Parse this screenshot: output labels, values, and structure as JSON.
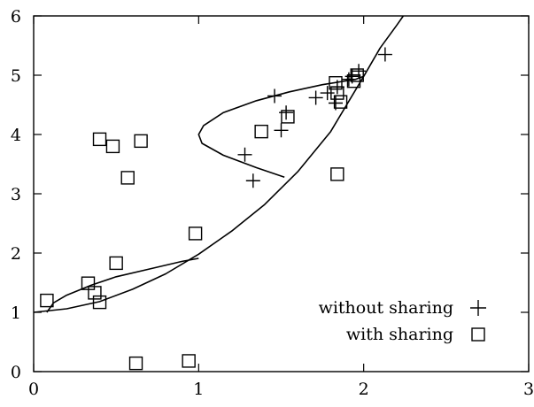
{
  "chart_data": {
    "type": "scatter",
    "xlim": [
      0,
      3
    ],
    "ylim": [
      0,
      6
    ],
    "x_ticks": [
      0,
      1,
      2,
      3
    ],
    "y_ticks": [
      0,
      1,
      2,
      3,
      4,
      5,
      6
    ],
    "grid": false,
    "legend_position": "bottom-right",
    "series": [
      {
        "name": "without sharing",
        "marker": "plus",
        "points": [
          [
            1.28,
            3.66
          ],
          [
            1.33,
            3.22
          ],
          [
            1.46,
            4.65
          ],
          [
            1.5,
            4.07
          ],
          [
            1.53,
            4.37
          ],
          [
            1.71,
            4.62
          ],
          [
            1.78,
            4.7
          ],
          [
            1.83,
            4.53
          ],
          [
            1.84,
            4.8
          ],
          [
            1.91,
            4.93
          ],
          [
            1.93,
            4.98
          ],
          [
            1.97,
            5.07
          ],
          [
            2.13,
            5.35
          ]
        ]
      },
      {
        "name": "with sharing",
        "marker": "square",
        "points": [
          [
            0.08,
            1.2
          ],
          [
            0.33,
            1.49
          ],
          [
            0.37,
            1.33
          ],
          [
            0.4,
            1.17
          ],
          [
            0.4,
            3.92
          ],
          [
            0.48,
            3.8
          ],
          [
            0.5,
            1.83
          ],
          [
            0.57,
            3.27
          ],
          [
            0.62,
            0.14
          ],
          [
            0.65,
            3.89
          ],
          [
            0.94,
            0.18
          ],
          [
            0.98,
            2.33
          ],
          [
            1.38,
            4.05
          ],
          [
            1.54,
            4.3
          ],
          [
            1.83,
            4.87
          ],
          [
            1.84,
            3.33
          ],
          [
            1.84,
            4.7
          ],
          [
            1.86,
            4.55
          ],
          [
            1.94,
            4.9
          ],
          [
            1.96,
            5.0
          ]
        ]
      }
    ],
    "curves": [
      {
        "points": [
          [
            0.0,
            1.0
          ],
          [
            0.2,
            1.06
          ],
          [
            0.4,
            1.18
          ],
          [
            0.6,
            1.39
          ],
          [
            0.8,
            1.65
          ],
          [
            1.0,
            1.98
          ],
          [
            1.2,
            2.37
          ],
          [
            1.4,
            2.82
          ],
          [
            1.6,
            3.37
          ],
          [
            1.8,
            4.05
          ],
          [
            2.0,
            4.98
          ],
          [
            2.1,
            5.46
          ],
          [
            2.2,
            5.84
          ],
          [
            2.24,
            6.0
          ]
        ]
      },
      {
        "points": [
          [
            0.08,
            1.0
          ],
          [
            0.12,
            1.16
          ],
          [
            0.2,
            1.29
          ],
          [
            0.35,
            1.46
          ],
          [
            0.5,
            1.6
          ],
          [
            0.7,
            1.73
          ],
          [
            0.9,
            1.86
          ],
          [
            1.0,
            1.91
          ]
        ]
      },
      {
        "points": [
          [
            1.52,
            3.28
          ],
          [
            1.35,
            3.44
          ],
          [
            1.15,
            3.65
          ],
          [
            1.02,
            3.85
          ],
          [
            1.0,
            4.0
          ],
          [
            1.03,
            4.15
          ],
          [
            1.15,
            4.37
          ],
          [
            1.35,
            4.57
          ],
          [
            1.55,
            4.72
          ],
          [
            1.75,
            4.84
          ],
          [
            1.95,
            4.93
          ],
          [
            2.0,
            4.98
          ]
        ]
      }
    ]
  }
}
